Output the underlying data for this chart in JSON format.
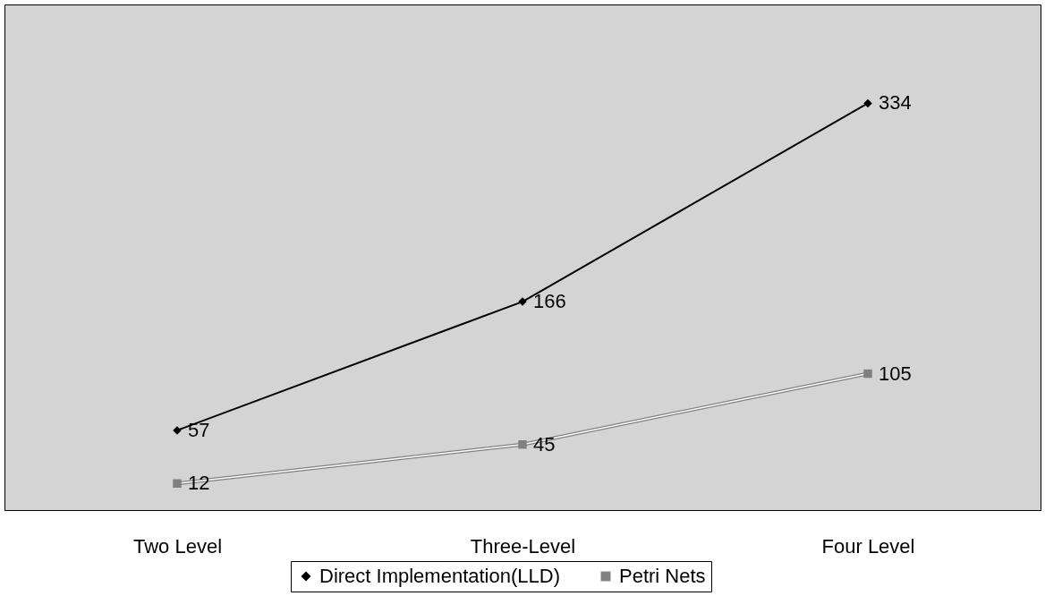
{
  "chart_data": {
    "type": "line",
    "categories": [
      "Two Level",
      "Three-Level",
      "Four Level"
    ],
    "series": [
      {
        "name": "Direct Implementation(LLD)",
        "color": "#000000",
        "marker": "diamond",
        "values": [
          57,
          166,
          334
        ]
      },
      {
        "name": "Petri Nets",
        "color": "#808080",
        "marker": "square",
        "values": [
          12,
          45,
          105
        ]
      }
    ],
    "data_labels": true,
    "legend": "bottom",
    "grid": false
  }
}
